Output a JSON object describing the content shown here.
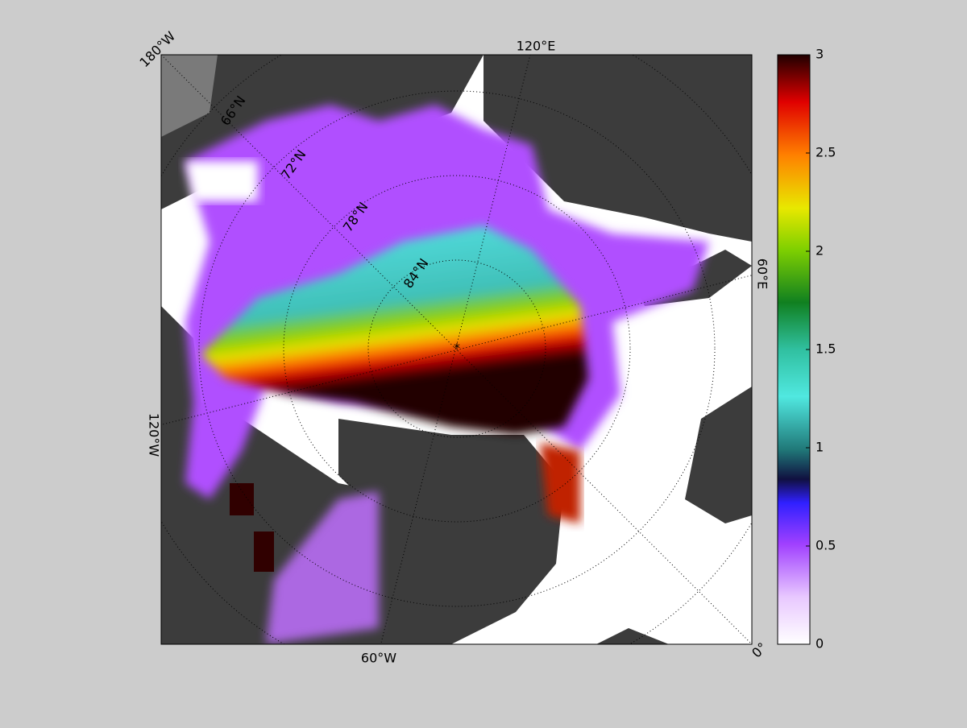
{
  "map": {
    "longitude_labels": [
      "180°W",
      "120°E",
      "60°E",
      "0°",
      "60°W",
      "120°W"
    ],
    "latitude_labels": [
      "66°N",
      "72°N",
      "78°N",
      "84°N"
    ]
  },
  "colorbar": {
    "lim": [
      0,
      3
    ],
    "ticks": [
      0,
      0.5,
      1,
      1.5,
      2,
      2.5,
      3
    ]
  }
}
